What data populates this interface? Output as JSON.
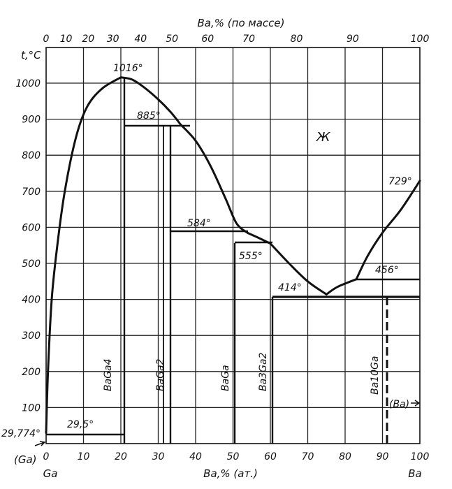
{
  "chart_data": {
    "type": "phase-diagram",
    "top_axis_label": "Ba,% (по массе)",
    "bottom_axis_label": "Ba,% (ат.)",
    "y_axis_label": "t,°C",
    "top_ticks": [
      "0",
      "10",
      "20",
      "30",
      "40",
      "50",
      "60",
      "70",
      "80",
      "90",
      "100"
    ],
    "top_tick_values": [
      0,
      10,
      20,
      30,
      40,
      50,
      60,
      70,
      80,
      90,
      100
    ],
    "bottom_ticks": [
      "0",
      "10",
      "20",
      "30",
      "40",
      "50",
      "60",
      "70",
      "80",
      "90",
      "100"
    ],
    "y_ticks": [
      "100",
      "200",
      "300",
      "400",
      "500",
      "600",
      "700",
      "800",
      "900",
      "1000"
    ],
    "y_range": [
      0,
      1100
    ],
    "x_range": [
      0,
      100
    ],
    "left_element": "Ga",
    "right_element": "Ba",
    "left_phase": "(Ga)",
    "right_phase": "(Ba)",
    "liquid_label": "Ж",
    "compounds": [
      {
        "name": "BaGa4",
        "x_at": 20
      },
      {
        "name": "BaGa2",
        "x_at": 33.3
      },
      {
        "name": "BaGa",
        "x_at": 50
      },
      {
        "name": "Ba3Ga2",
        "x_at": 60
      },
      {
        "name": "Ba10Ga",
        "x_at": 91
      }
    ],
    "temperature_labels": [
      "1016°",
      "885°",
      "584°",
      "555°",
      "414°",
      "456°",
      "729°",
      "29,5°",
      "29,774°"
    ],
    "liquidus": [
      {
        "segment": "Ga-BaGa4",
        "points": [
          [
            0,
            29.8
          ],
          [
            0.5,
            200
          ],
          [
            1.5,
            400
          ],
          [
            3,
            550
          ],
          [
            5,
            700
          ],
          [
            8,
            850
          ],
          [
            11,
            935
          ],
          [
            15,
            985
          ],
          [
            20,
            1016
          ]
        ]
      },
      {
        "segment": "BaGa4-peak",
        "points": [
          [
            20,
            1016
          ],
          [
            23,
            1010
          ],
          [
            26,
            990
          ],
          [
            30,
            955
          ],
          [
            33.3,
            920
          ],
          [
            36,
            885
          ]
        ]
      },
      {
        "segment": "to-BaGa",
        "points": [
          [
            36,
            885
          ],
          [
            40,
            840
          ],
          [
            44,
            770
          ],
          [
            48,
            680
          ],
          [
            51,
            610
          ],
          [
            54,
            584
          ]
        ]
      },
      {
        "segment": "to-Ba3Ga2",
        "points": [
          [
            54,
            584
          ],
          [
            57,
            570
          ],
          [
            60,
            555
          ]
        ]
      },
      {
        "segment": "to-eutectic",
        "points": [
          [
            60,
            555
          ],
          [
            65,
            500
          ],
          [
            70,
            450
          ],
          [
            75,
            414
          ]
        ]
      },
      {
        "segment": "eutectic-to-456",
        "points": [
          [
            75,
            414
          ],
          [
            78,
            435
          ],
          [
            83,
            456
          ]
        ]
      },
      {
        "segment": "456-to-Ba",
        "points": [
          [
            83,
            456
          ],
          [
            86,
            520
          ],
          [
            90,
            585
          ],
          [
            95,
            650
          ],
          [
            100,
            729
          ]
        ]
      }
    ]
  }
}
